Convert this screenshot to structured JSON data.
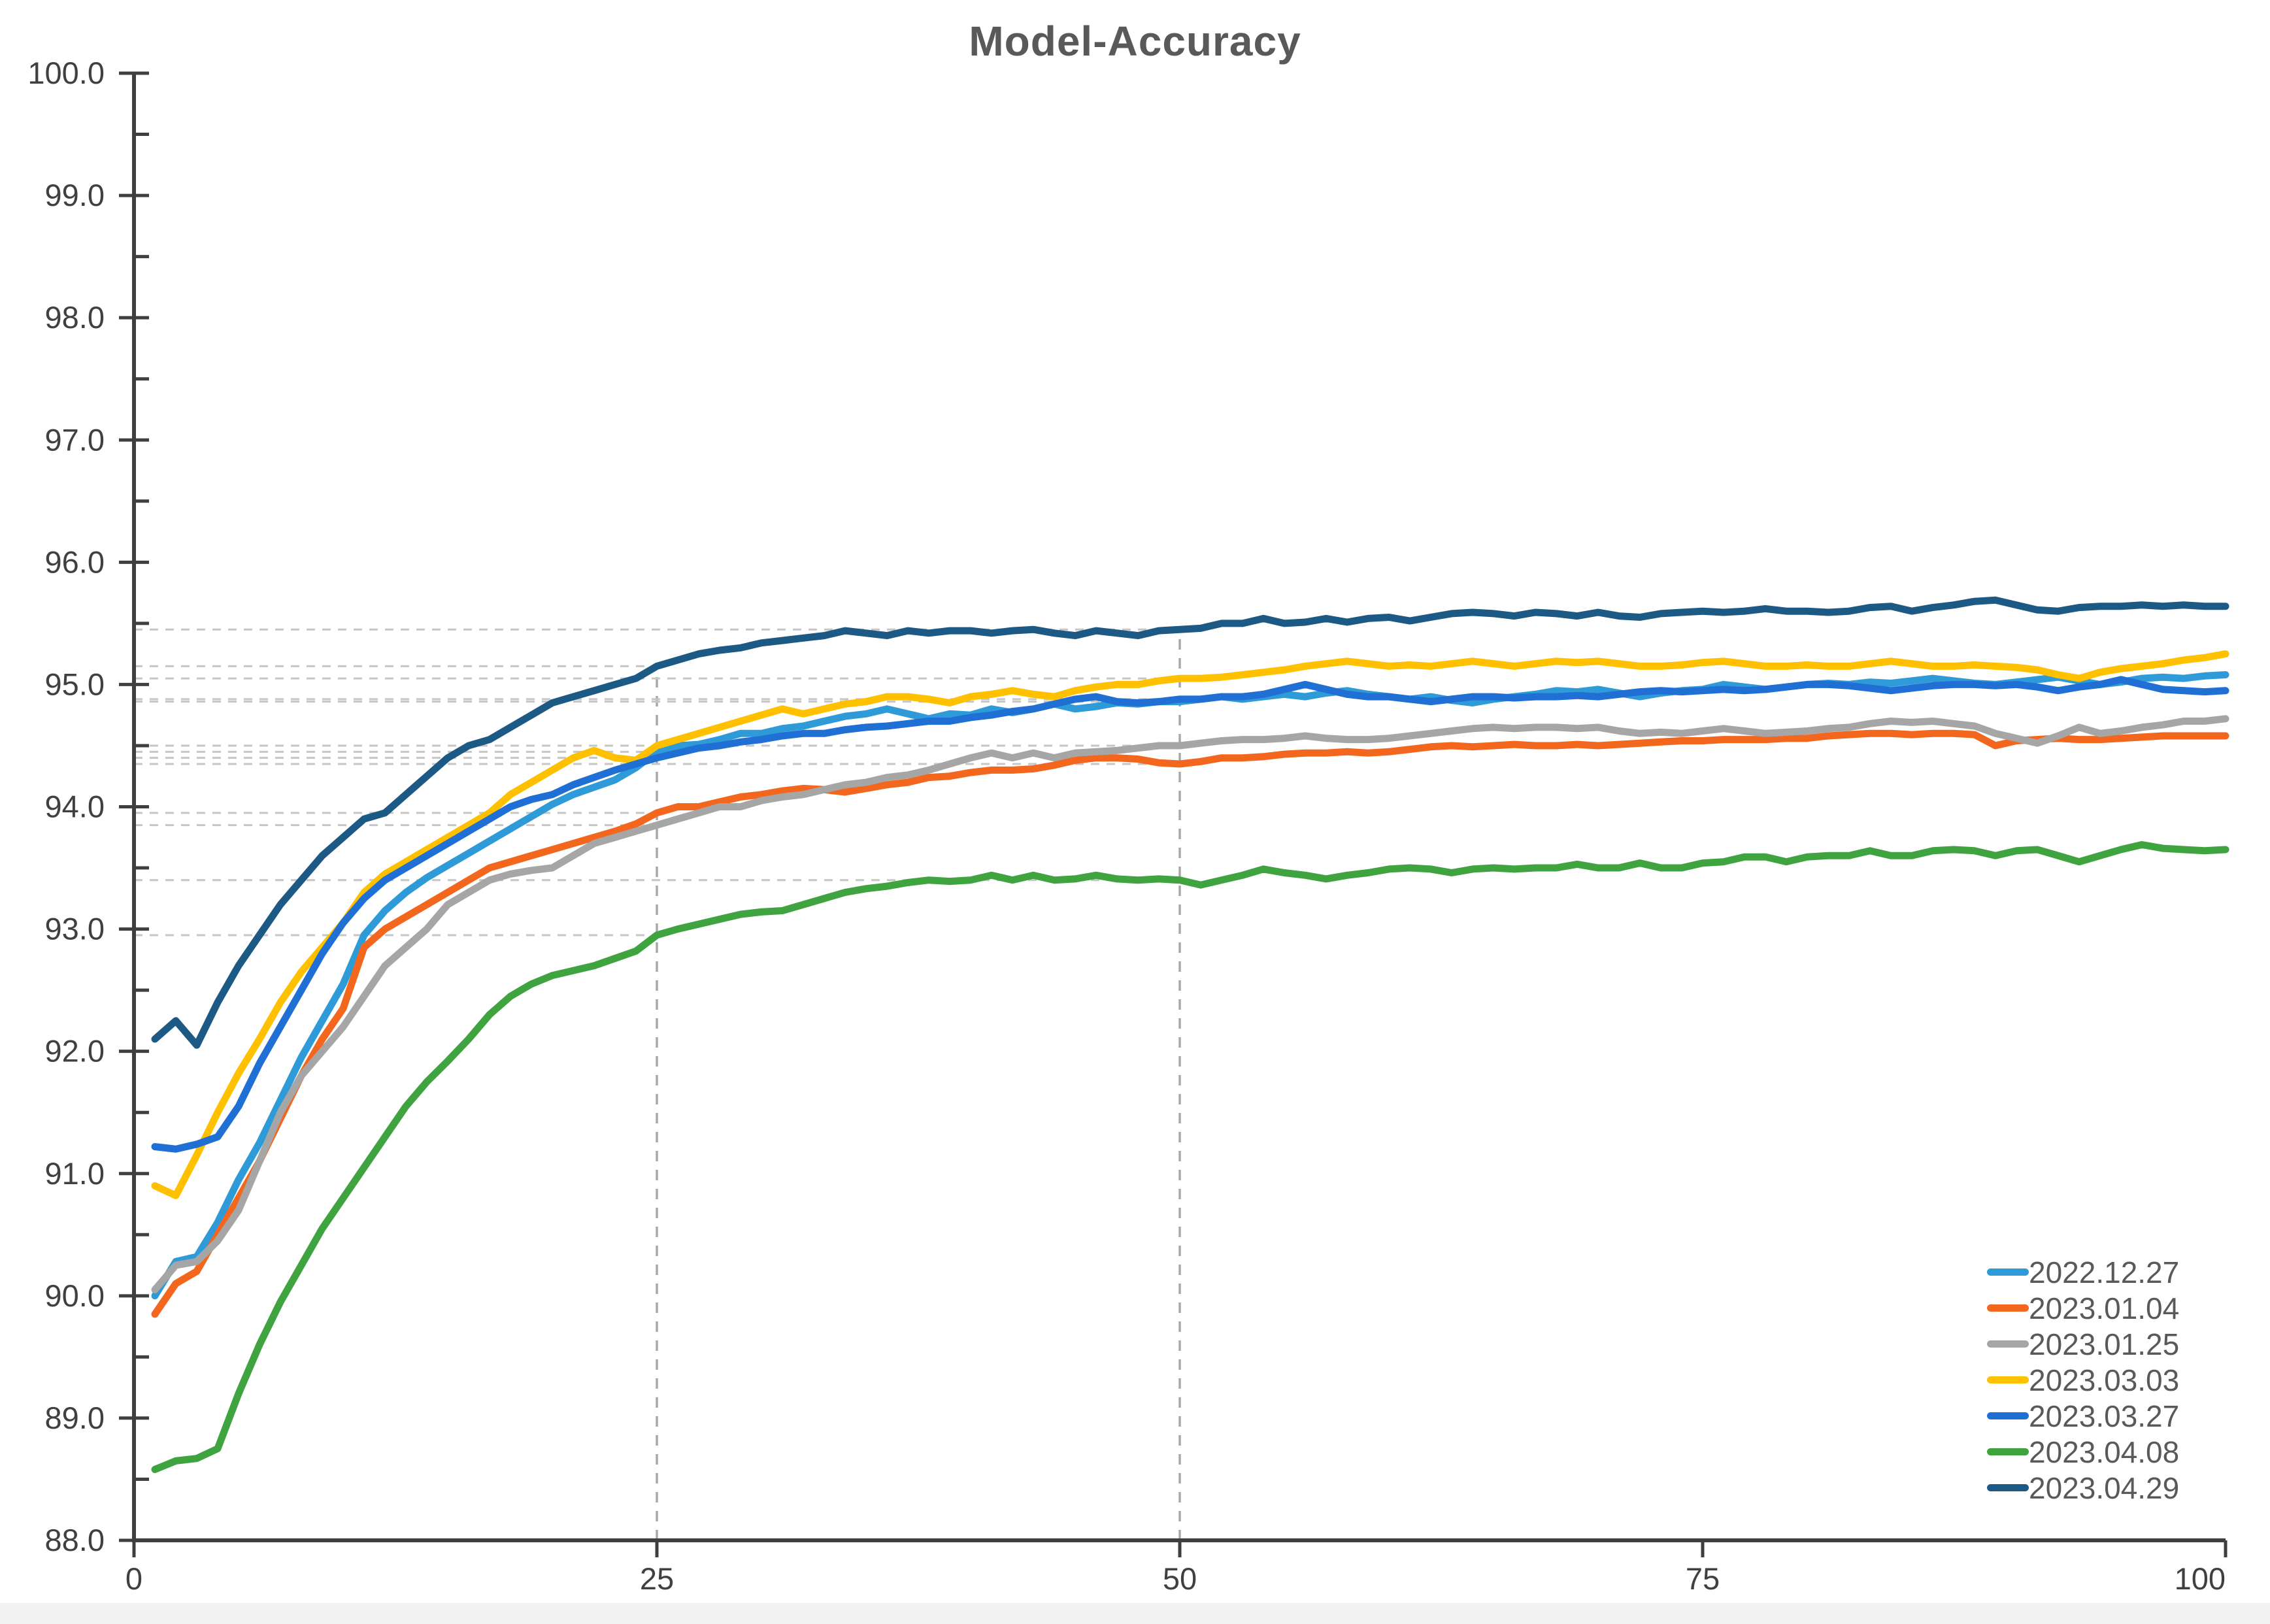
{
  "chart_data": {
    "type": "line",
    "title": "Model-Accuracy",
    "xlabel": "",
    "ylabel": "",
    "xlim": [
      0,
      100
    ],
    "ylim": [
      88.0,
      100.0
    ],
    "x_ticks": [
      0,
      25,
      50,
      75,
      100
    ],
    "y_tick_labels": [
      "100.0",
      "99.0",
      "98.0",
      "97.0",
      "96.0",
      "95.0",
      "94.0",
      "93.0",
      "92.0",
      "91.0",
      "90.0",
      "89.0",
      "88.0"
    ],
    "y_minor_tick_step": 0.5,
    "grid": "dashed callout lines at x=25 and x=50 only",
    "legend_position": "bottom-right inside plot",
    "callout_x": [
      25,
      50
    ],
    "colors": {
      "axis": "#3f3f3f",
      "tick_label": "#404040",
      "title": "#595959",
      "legend_text": "#595959",
      "callout_h": "#c6c6c6",
      "callout_v": "#a8a8a8"
    },
    "series": [
      {
        "name": "2022.12.27",
        "color": "#2E9BD8",
        "values": [
          90.0,
          90.28,
          90.32,
          90.6,
          90.95,
          91.25,
          91.6,
          91.95,
          92.25,
          92.55,
          92.95,
          93.15,
          93.3,
          93.42,
          93.52,
          93.62,
          93.72,
          93.82,
          93.92,
          94.02,
          94.1,
          94.16,
          94.22,
          94.32,
          94.45,
          94.5,
          94.51,
          94.55,
          94.6,
          94.6,
          94.64,
          94.66,
          94.7,
          94.74,
          94.76,
          94.8,
          94.76,
          94.72,
          94.76,
          94.75,
          94.8,
          94.77,
          94.8,
          94.84,
          94.8,
          94.82,
          94.85,
          94.84,
          94.86,
          94.86,
          94.88,
          94.9,
          94.88,
          94.9,
          94.92,
          94.9,
          94.93,
          94.95,
          94.92,
          94.9,
          94.88,
          94.9,
          94.87,
          94.85,
          94.88,
          94.9,
          94.92,
          94.95,
          94.94,
          94.96,
          94.93,
          94.9,
          94.93,
          94.95,
          94.96,
          95.0,
          94.98,
          94.96,
          94.98,
          95.0,
          95.01,
          95.0,
          95.02,
          95.01,
          95.03,
          95.05,
          95.03,
          95.01,
          95.0,
          95.02,
          95.04,
          95.06,
          95.03,
          95.0,
          95.02,
          95.05,
          95.06,
          95.05,
          95.07,
          95.08
        ]
      },
      {
        "name": "2023.01.04",
        "color": "#F3661E",
        "values": [
          89.85,
          90.1,
          90.2,
          90.5,
          90.8,
          91.1,
          91.45,
          91.8,
          92.1,
          92.35,
          92.85,
          93.0,
          93.1,
          93.2,
          93.3,
          93.4,
          93.5,
          93.55,
          93.6,
          93.65,
          93.7,
          93.75,
          93.8,
          93.86,
          93.95,
          94.0,
          94.0,
          94.04,
          94.08,
          94.1,
          94.13,
          94.15,
          94.14,
          94.12,
          94.15,
          94.18,
          94.2,
          94.24,
          94.25,
          94.28,
          94.3,
          94.3,
          94.31,
          94.34,
          94.38,
          94.4,
          94.4,
          94.39,
          94.36,
          94.35,
          94.37,
          94.4,
          94.4,
          94.41,
          94.43,
          94.44,
          94.44,
          94.45,
          94.44,
          94.45,
          94.47,
          94.49,
          94.5,
          94.49,
          94.5,
          94.51,
          94.5,
          94.5,
          94.51,
          94.5,
          94.51,
          94.52,
          94.53,
          94.54,
          94.54,
          94.55,
          94.55,
          94.55,
          94.56,
          94.56,
          94.58,
          94.59,
          94.6,
          94.6,
          94.59,
          94.6,
          94.6,
          94.59,
          94.5,
          94.54,
          94.55,
          94.56,
          94.55,
          94.55,
          94.56,
          94.57,
          94.58,
          94.58,
          94.58,
          94.58
        ]
      },
      {
        "name": "2023.01.25",
        "color": "#A6A6A6",
        "values": [
          90.05,
          90.25,
          90.28,
          90.45,
          90.7,
          91.1,
          91.5,
          91.8,
          92.0,
          92.2,
          92.45,
          92.7,
          92.85,
          93.0,
          93.2,
          93.3,
          93.4,
          93.45,
          93.48,
          93.5,
          93.6,
          93.7,
          93.75,
          93.8,
          93.85,
          93.9,
          93.95,
          94.0,
          94.0,
          94.05,
          94.08,
          94.1,
          94.14,
          94.18,
          94.2,
          94.24,
          94.26,
          94.3,
          94.35,
          94.4,
          94.44,
          94.4,
          94.44,
          94.4,
          94.44,
          94.45,
          94.46,
          94.48,
          94.5,
          94.5,
          94.52,
          94.54,
          94.55,
          94.55,
          94.56,
          94.58,
          94.56,
          94.55,
          94.55,
          94.56,
          94.58,
          94.6,
          94.62,
          94.64,
          94.65,
          94.64,
          94.65,
          94.65,
          94.64,
          94.65,
          94.62,
          94.6,
          94.61,
          94.6,
          94.62,
          94.64,
          94.62,
          94.6,
          94.61,
          94.62,
          94.64,
          94.65,
          94.68,
          94.7,
          94.69,
          94.7,
          94.68,
          94.66,
          94.6,
          94.56,
          94.52,
          94.58,
          94.65,
          94.6,
          94.62,
          94.65,
          94.67,
          94.7,
          94.7,
          94.72
        ]
      },
      {
        "name": "2023.03.03",
        "color": "#FFC000",
        "values": [
          90.9,
          90.82,
          91.15,
          91.5,
          91.82,
          92.1,
          92.4,
          92.65,
          92.85,
          93.05,
          93.3,
          93.45,
          93.55,
          93.65,
          93.75,
          93.85,
          93.95,
          94.1,
          94.2,
          94.3,
          94.4,
          94.46,
          94.4,
          94.38,
          94.5,
          94.55,
          94.6,
          94.65,
          94.7,
          94.75,
          94.8,
          94.76,
          94.8,
          94.84,
          94.86,
          94.9,
          94.9,
          94.88,
          94.85,
          94.9,
          94.92,
          94.95,
          94.92,
          94.9,
          94.95,
          94.98,
          95.0,
          95.0,
          95.03,
          95.05,
          95.05,
          95.06,
          95.08,
          95.1,
          95.12,
          95.15,
          95.17,
          95.19,
          95.17,
          95.15,
          95.16,
          95.15,
          95.17,
          95.19,
          95.17,
          95.15,
          95.17,
          95.19,
          95.18,
          95.19,
          95.17,
          95.15,
          95.15,
          95.16,
          95.18,
          95.19,
          95.17,
          95.15,
          95.15,
          95.16,
          95.15,
          95.15,
          95.17,
          95.19,
          95.17,
          95.15,
          95.15,
          95.16,
          95.15,
          95.14,
          95.12,
          95.08,
          95.05,
          95.1,
          95.13,
          95.15,
          95.17,
          95.2,
          95.22,
          95.25
        ]
      },
      {
        "name": "2023.03.27",
        "color": "#1F6FD5",
        "values": [
          91.22,
          91.2,
          91.24,
          91.3,
          91.55,
          91.9,
          92.2,
          92.5,
          92.8,
          93.05,
          93.25,
          93.4,
          93.5,
          93.6,
          93.7,
          93.8,
          93.9,
          94.0,
          94.06,
          94.1,
          94.18,
          94.24,
          94.3,
          94.35,
          94.4,
          94.44,
          94.48,
          94.5,
          94.53,
          94.55,
          94.58,
          94.6,
          94.6,
          94.63,
          94.65,
          94.66,
          94.68,
          94.7,
          94.7,
          94.73,
          94.75,
          94.78,
          94.8,
          94.84,
          94.88,
          94.9,
          94.86,
          94.85,
          94.86,
          94.88,
          94.88,
          94.9,
          94.9,
          94.92,
          94.96,
          95.0,
          94.96,
          94.92,
          94.9,
          94.9,
          94.88,
          94.86,
          94.88,
          94.9,
          94.9,
          94.89,
          94.9,
          94.9,
          94.91,
          94.9,
          94.92,
          94.94,
          94.95,
          94.94,
          94.95,
          94.96,
          94.95,
          94.96,
          94.98,
          95.0,
          95.0,
          94.99,
          94.97,
          94.95,
          94.97,
          94.99,
          95.0,
          95.0,
          94.99,
          95.0,
          94.98,
          94.95,
          94.98,
          95.0,
          95.04,
          95.0,
          94.96,
          94.95,
          94.94,
          94.95
        ]
      },
      {
        "name": "2023.04.08",
        "color": "#3FA33F",
        "values": [
          88.58,
          88.65,
          88.67,
          88.75,
          89.2,
          89.6,
          89.95,
          90.25,
          90.55,
          90.8,
          91.05,
          91.3,
          91.55,
          91.75,
          91.92,
          92.1,
          92.3,
          92.45,
          92.55,
          92.62,
          92.66,
          92.7,
          92.76,
          92.82,
          92.95,
          93.0,
          93.04,
          93.08,
          93.12,
          93.14,
          93.15,
          93.2,
          93.25,
          93.3,
          93.33,
          93.35,
          93.38,
          93.4,
          93.39,
          93.4,
          93.44,
          93.4,
          93.44,
          93.4,
          93.41,
          93.44,
          93.41,
          93.4,
          93.41,
          93.4,
          93.36,
          93.4,
          93.44,
          93.49,
          93.46,
          93.44,
          93.41,
          93.44,
          93.46,
          93.49,
          93.5,
          93.49,
          93.46,
          93.49,
          93.5,
          93.49,
          93.5,
          93.5,
          93.53,
          93.5,
          93.5,
          93.54,
          93.5,
          93.5,
          93.54,
          93.55,
          93.59,
          93.59,
          93.55,
          93.59,
          93.6,
          93.6,
          93.64,
          93.6,
          93.6,
          93.64,
          93.65,
          93.64,
          93.6,
          93.64,
          93.65,
          93.6,
          93.55,
          93.6,
          93.65,
          93.69,
          93.66,
          93.65,
          93.64,
          93.65
        ]
      },
      {
        "name": "2023.04.29",
        "color": "#1C5A85",
        "values": [
          92.1,
          92.25,
          92.05,
          92.4,
          92.7,
          92.95,
          93.2,
          93.4,
          93.6,
          93.75,
          93.9,
          93.95,
          94.1,
          94.25,
          94.4,
          94.5,
          94.55,
          94.65,
          94.75,
          94.85,
          94.9,
          94.95,
          95.0,
          95.05,
          95.15,
          95.2,
          95.25,
          95.28,
          95.3,
          95.34,
          95.36,
          95.38,
          95.4,
          95.44,
          95.42,
          95.4,
          95.44,
          95.42,
          95.44,
          95.44,
          95.42,
          95.44,
          95.45,
          95.42,
          95.4,
          95.44,
          95.42,
          95.4,
          95.44,
          95.45,
          95.46,
          95.5,
          95.5,
          95.54,
          95.5,
          95.51,
          95.54,
          95.51,
          95.54,
          95.55,
          95.52,
          95.55,
          95.58,
          95.59,
          95.58,
          95.56,
          95.59,
          95.58,
          95.56,
          95.59,
          95.56,
          95.55,
          95.58,
          95.59,
          95.6,
          95.59,
          95.6,
          95.62,
          95.6,
          95.6,
          95.59,
          95.6,
          95.63,
          95.64,
          95.6,
          95.63,
          95.65,
          95.68,
          95.69,
          95.65,
          95.61,
          95.6,
          95.63,
          95.64,
          95.64,
          95.65,
          95.64,
          95.65,
          95.64,
          95.64
        ]
      }
    ]
  }
}
